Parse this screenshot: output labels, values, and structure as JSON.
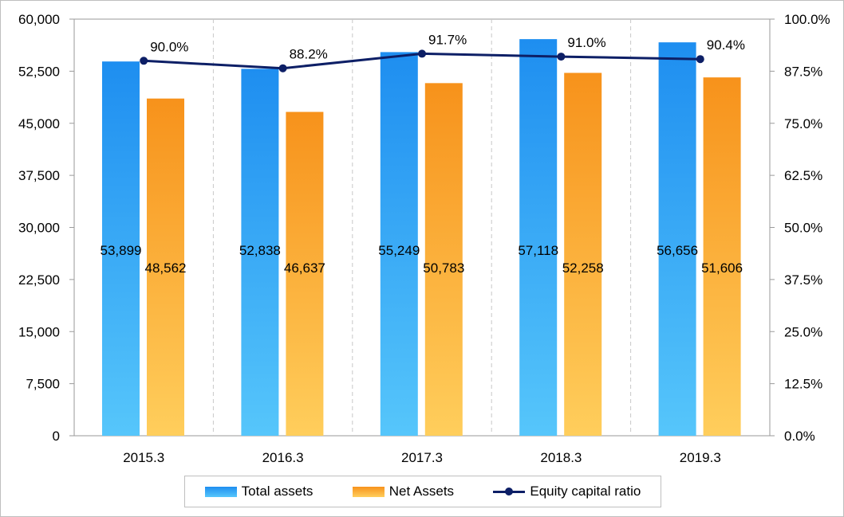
{
  "chart_data": {
    "type": "bar",
    "categories": [
      "2015.3",
      "2016.3",
      "2017.3",
      "2018.3",
      "2019.3"
    ],
    "series": [
      {
        "name": "Total assets",
        "type": "bar",
        "axis": "left",
        "values": [
          53899,
          52838,
          55249,
          57118,
          56656
        ],
        "labels": [
          "53,899",
          "52,838",
          "55,249",
          "57,118",
          "56,656"
        ],
        "color": "#2f9bf2"
      },
      {
        "name": "Net Assets",
        "type": "bar",
        "axis": "left",
        "values": [
          48562,
          46637,
          50783,
          52258,
          51606
        ],
        "labels": [
          "48,562",
          "46,637",
          "50,783",
          "52,258",
          "51,606"
        ],
        "color": "#f7981d"
      },
      {
        "name": "Equity capital ratio",
        "type": "line",
        "axis": "right",
        "values": [
          90.0,
          88.2,
          91.7,
          91.0,
          90.4
        ],
        "labels": [
          "90.0%",
          "88.2%",
          "91.7%",
          "91.0%",
          "90.4%"
        ],
        "color": "#0d1f66"
      }
    ],
    "y_left": {
      "ylim": [
        0,
        60000
      ],
      "ticks": [
        "0",
        "7,500",
        "15,000",
        "22,500",
        "30,000",
        "37,500",
        "45,000",
        "52,500",
        "60,000"
      ]
    },
    "y_right": {
      "ylim": [
        0,
        100
      ],
      "ticks": [
        "0.0%",
        "12.5%",
        "25.0%",
        "37.5%",
        "50.0%",
        "62.5%",
        "75.0%",
        "87.5%",
        "100.0%"
      ]
    },
    "grid": "vertical-dashed",
    "legend_position": "bottom",
    "title": "",
    "xlabel": "",
    "ylabel": ""
  },
  "legend": {
    "total_assets": "Total assets",
    "net_assets": "Net Assets",
    "equity_ratio": "Equity capital ratio"
  }
}
